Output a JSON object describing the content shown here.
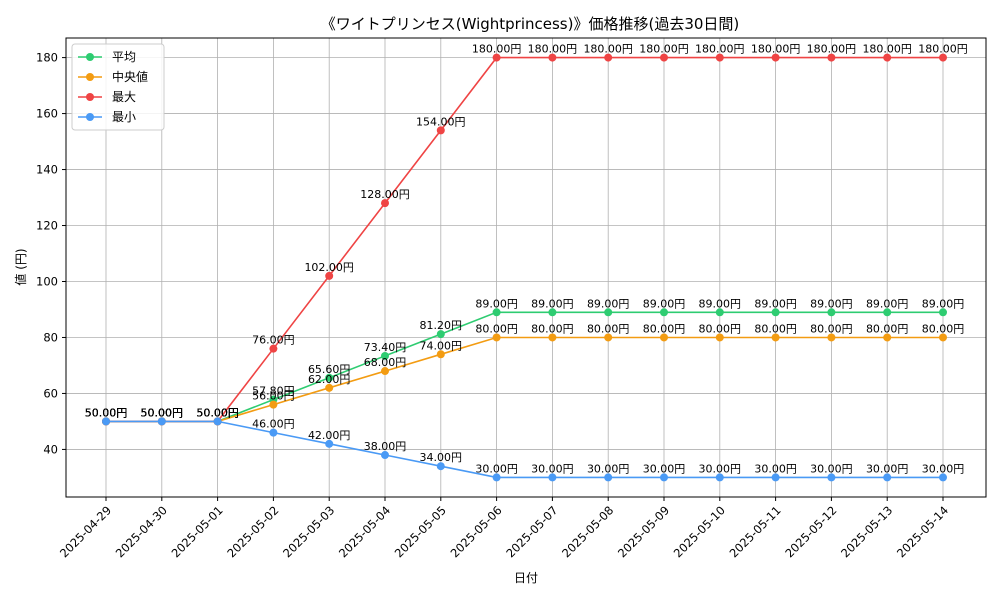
{
  "chart_data": {
    "type": "line",
    "title": "《ワイトプリンセス(Wightprincess)》価格推移(過去30日間)",
    "xlabel": "日付",
    "ylabel": "値 (円)",
    "ylim": [
      23,
      187
    ],
    "yticks": [
      40,
      60,
      80,
      100,
      120,
      140,
      160,
      180
    ],
    "grid": true,
    "legend_position": "top-left",
    "label_suffix": "円",
    "categories": [
      "2025-04-29",
      "2025-04-30",
      "2025-05-01",
      "2025-05-02",
      "2025-05-03",
      "2025-05-04",
      "2025-05-05",
      "2025-05-06",
      "2025-05-07",
      "2025-05-08",
      "2025-05-09",
      "2025-05-10",
      "2025-05-11",
      "2025-05-12",
      "2025-05-13",
      "2025-05-14"
    ],
    "series": [
      {
        "name": "平均",
        "color": "#2ecc71",
        "values": [
          50,
          50,
          50,
          57.8,
          65.6,
          73.4,
          81.2,
          89,
          89,
          89,
          89,
          89,
          89,
          89,
          89,
          89
        ]
      },
      {
        "name": "中央値",
        "color": "#f39c12",
        "values": [
          50,
          50,
          50,
          56,
          62,
          68,
          74,
          80,
          80,
          80,
          80,
          80,
          80,
          80,
          80,
          80
        ]
      },
      {
        "name": "最大",
        "color": "#ef4444",
        "values": [
          50,
          50,
          50,
          76,
          102,
          128,
          154,
          180,
          180,
          180,
          180,
          180,
          180,
          180,
          180,
          180
        ]
      },
      {
        "name": "最小",
        "color": "#4a9af5",
        "values": [
          50,
          50,
          50,
          46,
          42,
          38,
          34,
          30,
          30,
          30,
          30,
          30,
          30,
          30,
          30,
          30
        ]
      }
    ]
  }
}
